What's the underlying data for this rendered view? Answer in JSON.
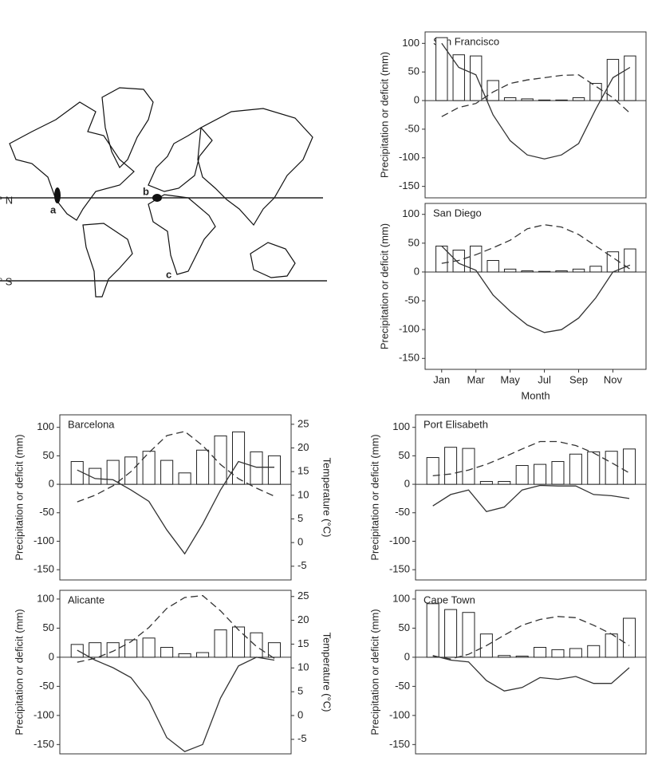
{
  "map": {
    "latitude_labels": [
      "° N",
      "° S"
    ],
    "site_labels": [
      "a",
      "b",
      "c"
    ]
  },
  "chart_data": [
    {
      "type": "bar",
      "title": "San Francisco",
      "ylabel": "Precipitation or deficit (mm)",
      "ylim": [
        -170,
        120
      ],
      "yticks": [
        100,
        50,
        0,
        -50,
        -100,
        -150
      ],
      "series": [
        {
          "type": "bar",
          "color": "#ffffff",
          "values": [
            110,
            80,
            78,
            35,
            5,
            3,
            1,
            1,
            5,
            30,
            72,
            78
          ]
        },
        {
          "type": "line",
          "color": "#333333",
          "values": [
            100,
            58,
            45,
            -25,
            -70,
            -95,
            -102,
            -95,
            -75,
            -15,
            40,
            58
          ]
        },
        {
          "type": "line",
          "dashed": true,
          "color": "#333333",
          "values": [
            -28,
            -12,
            -5,
            15,
            30,
            36,
            40,
            44,
            45,
            25,
            5,
            -22
          ]
        }
      ]
    },
    {
      "type": "bar",
      "title": "San Diego",
      "ylabel": "Precipitation or deficit (mm)",
      "xlabel": "Month",
      "categories": [
        "Jan",
        null,
        "Mar",
        null,
        "May",
        null,
        "Jul",
        null,
        "Sep",
        null,
        "Nov",
        null
      ],
      "ylim": [
        -169,
        119
      ],
      "yticks": [
        100,
        50,
        0,
        -50,
        -100,
        -150
      ],
      "series": [
        {
          "type": "bar",
          "color": "#ffffff",
          "values": [
            45,
            38,
            45,
            20,
            5,
            2,
            1,
            2,
            5,
            10,
            35,
            40
          ]
        },
        {
          "type": "line",
          "color": "#333333",
          "values": [
            45,
            15,
            3,
            -40,
            -68,
            -92,
            -105,
            -100,
            -80,
            -45,
            0,
            12
          ]
        },
        {
          "type": "line",
          "dashed": true,
          "color": "#333333",
          "values": [
            15,
            20,
            30,
            42,
            55,
            75,
            82,
            78,
            65,
            45,
            25,
            5
          ]
        }
      ]
    },
    {
      "type": "bar",
      "title": "Barcelona",
      "ylabel": "Precipitation or deficit (mm)",
      "y2label": "Temperature (°C)",
      "ylim": [
        -168,
        122
      ],
      "yticks": [
        100,
        50,
        0,
        -50,
        -100,
        -150
      ],
      "y2lim": [
        -7.9,
        27
      ],
      "y2ticks": [
        25,
        20,
        15,
        10,
        5,
        0,
        -5
      ],
      "series": [
        {
          "type": "bar",
          "color": "#ffffff",
          "values": [
            40,
            28,
            42,
            48,
            58,
            42,
            20,
            60,
            85,
            92,
            57,
            50
          ]
        },
        {
          "type": "line",
          "color": "#333333",
          "values": [
            25,
            10,
            8,
            -10,
            -30,
            -80,
            -122,
            -70,
            -10,
            40,
            30,
            30
          ]
        },
        {
          "type": "line",
          "dashed": true,
          "axis": "y2",
          "color": "#333333",
          "values": [
            8.6,
            10,
            12,
            15,
            19,
            22.6,
            23.5,
            20.5,
            16.5,
            13.5,
            11.5,
            9.8
          ]
        }
      ]
    },
    {
      "type": "bar",
      "title": "Alicante",
      "ylabel": "Precipitation or deficit (mm)",
      "y2label": "Temperature (°C)",
      "ylim": [
        -166,
        115
      ],
      "yticks": [
        100,
        50,
        0,
        -50,
        -100,
        -150
      ],
      "y2lim": [
        -8.05,
        26.3
      ],
      "y2ticks": [
        25,
        20,
        15,
        10,
        5,
        0,
        -5
      ],
      "series": [
        {
          "type": "bar",
          "color": "#ffffff",
          "values": [
            22,
            25,
            25,
            30,
            33,
            17,
            6,
            8,
            47,
            52,
            42,
            25
          ]
        },
        {
          "type": "line",
          "color": "#333333",
          "values": [
            12,
            -5,
            -18,
            -35,
            -75,
            -138,
            -162,
            -150,
            -70,
            -15,
            0,
            -5
          ]
        },
        {
          "type": "line",
          "dashed": true,
          "axis": "y2",
          "color": "#333333",
          "values": [
            11.2,
            12,
            13.5,
            15.5,
            18.5,
            22.5,
            24.8,
            25.2,
            22,
            18,
            14.5,
            12
          ]
        }
      ]
    },
    {
      "type": "bar",
      "title": "Port Elisabeth",
      "ylabel": "Precipitation or deficit (mm)",
      "ylim": [
        -168,
        122
      ],
      "yticks": [
        100,
        50,
        0,
        -50,
        -100,
        -150
      ],
      "series": [
        {
          "type": "bar",
          "color": "#ffffff",
          "values": [
            47,
            65,
            63,
            5,
            5,
            33,
            35,
            40,
            53,
            57,
            58,
            62
          ]
        },
        {
          "type": "line",
          "color": "#333333",
          "values": [
            -38,
            -18,
            -10,
            -48,
            -40,
            -10,
            -2,
            -3,
            -3,
            -18,
            -20,
            -25
          ]
        },
        {
          "type": "line",
          "dashed": true,
          "color": "#333333",
          "values": [
            15,
            18,
            25,
            35,
            48,
            62,
            75,
            75,
            68,
            55,
            38,
            20
          ]
        }
      ]
    },
    {
      "type": "bar",
      "title": "Cape Town",
      "ylabel": "Precipitation or deficit (mm)",
      "ylim": [
        -166,
        115
      ],
      "yticks": [
        100,
        50,
        0,
        -50,
        -100,
        -150
      ],
      "series": [
        {
          "type": "bar",
          "color": "#ffffff",
          "values": [
            92,
            82,
            77,
            40,
            3,
            2,
            17,
            13,
            15,
            20,
            40,
            67
          ]
        },
        {
          "type": "line",
          "color": "#333333",
          "values": [
            3,
            -5,
            -8,
            -40,
            -58,
            -52,
            -35,
            -38,
            -33,
            -45,
            -45,
            -18
          ]
        },
        {
          "type": "line",
          "dashed": true,
          "color": "#333333",
          "values": [
            2,
            -3,
            5,
            20,
            38,
            55,
            65,
            70,
            68,
            55,
            40,
            20
          ]
        }
      ]
    }
  ]
}
